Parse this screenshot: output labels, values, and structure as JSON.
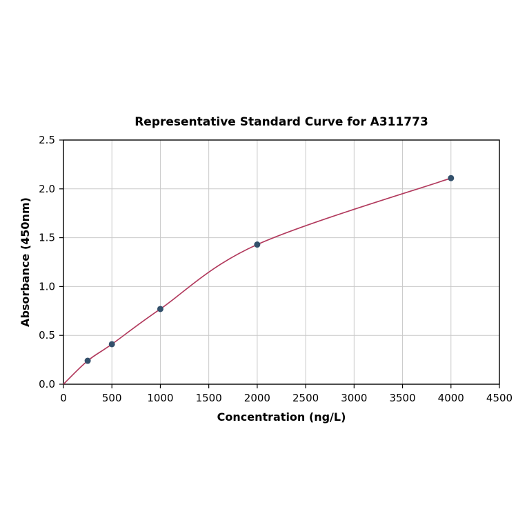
{
  "chart_data": {
    "type": "scatter",
    "title": "Representative Standard Curve for A311773",
    "xlabel": "Concentration (ng/L)",
    "ylabel": "Absorbance (450nm)",
    "xlim": [
      0,
      4500
    ],
    "ylim": [
      0,
      2.5
    ],
    "xticks": [
      0,
      500,
      1000,
      1500,
      2000,
      2500,
      3000,
      3500,
      4000,
      4500
    ],
    "yticks": [
      0.0,
      0.5,
      1.0,
      1.5,
      2.0,
      2.5
    ],
    "points": {
      "x": [
        250,
        500,
        1000,
        2000,
        4000
      ],
      "y": [
        0.24,
        0.41,
        0.77,
        1.43,
        2.11
      ]
    },
    "curve_start": {
      "x": 0,
      "y": 0
    },
    "grid": true,
    "legend_position": "none",
    "colors": {
      "point": "#33506b",
      "curve": "#b23b5e",
      "grid": "#c9c9c9",
      "axis": "#000000",
      "background": "#ffffff"
    }
  }
}
